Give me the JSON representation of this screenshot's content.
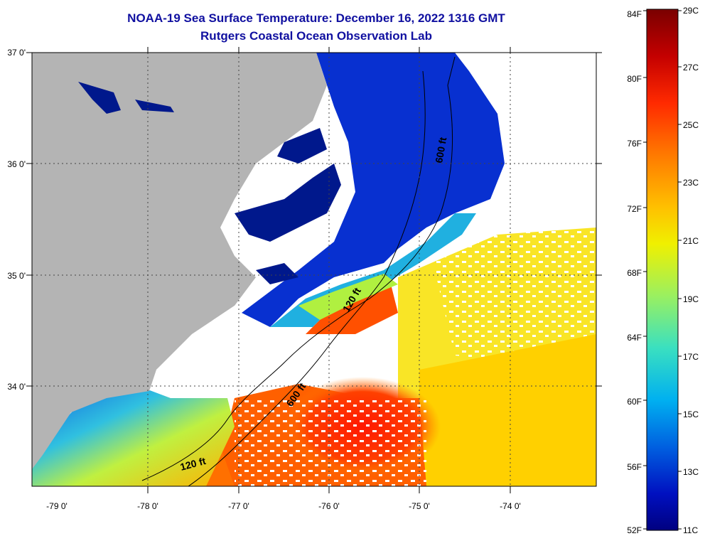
{
  "title": "NOAA-19 Sea Surface Temperature:  December 16, 2022 1316 GMT",
  "subtitle": "Rutgers Coastal Ocean Observation Lab",
  "lat_labels": [
    "37 0'",
    "36 0'",
    "35 0'",
    "34 0'"
  ],
  "lon_labels": [
    "-79 0'",
    "-78 0'",
    "-77 0'",
    "-76 0'",
    "-75 0'",
    "-74 0'"
  ],
  "contours": [
    "600 ft",
    "120 ft",
    "600 ft",
    "120 ft"
  ],
  "colorbar": {
    "f_labels": [
      "84F",
      "80F",
      "76F",
      "72F",
      "68F",
      "64F",
      "60F",
      "56F",
      "52F"
    ],
    "c_labels": [
      "29C",
      "27C",
      "25C",
      "23C",
      "21C",
      "19C",
      "17C",
      "15C",
      "13C",
      "11C"
    ],
    "colors": [
      "#7a0000",
      "#c40000",
      "#ff2a00",
      "#ff7a00",
      "#ffc000",
      "#f0f000",
      "#9af060",
      "#3ae0c0",
      "#00b0f0",
      "#0060e0",
      "#0010c0",
      "#000080"
    ]
  },
  "colors": {
    "land": "#b4b4b4",
    "sound": "#00188c",
    "cloud": "#ffffff"
  }
}
